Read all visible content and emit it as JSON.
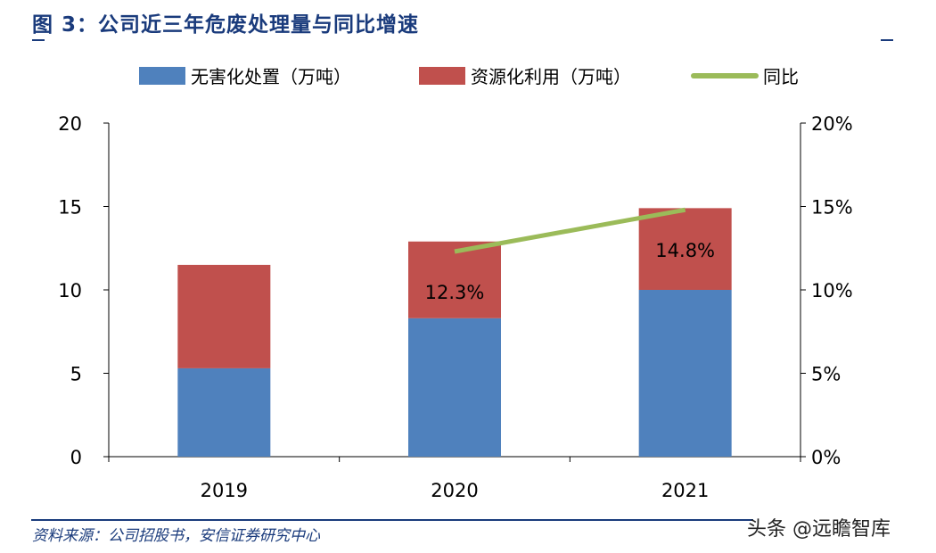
{
  "title": "图 3：公司近三年危废处理量与同比增速",
  "source": "资料来源：公司招股书，安信证券研究中心",
  "watermark": "头条 @远瞻智库",
  "chart_data": {
    "type": "bar",
    "stacked": true,
    "categories": [
      "2019",
      "2020",
      "2021"
    ],
    "series": [
      {
        "name": "无害化处置（万吨）",
        "type": "bar",
        "axis": "left",
        "color": "#4f81bd",
        "values": [
          5.3,
          8.3,
          10.0
        ]
      },
      {
        "name": "资源化利用（万吨）",
        "type": "bar",
        "axis": "left",
        "color": "#c0504d",
        "values": [
          6.2,
          4.6,
          4.9
        ]
      },
      {
        "name": "同比",
        "type": "line",
        "axis": "right",
        "color": "#9bbb59",
        "values": [
          null,
          12.3,
          14.8
        ],
        "labels": [
          "",
          "12.3%",
          "14.8%"
        ]
      }
    ],
    "y_left": {
      "range": [
        0,
        20
      ],
      "ticks": [
        "0",
        "5",
        "10",
        "15",
        "20"
      ]
    },
    "y_right": {
      "range": [
        0,
        20
      ],
      "ticks": [
        "0%",
        "5%",
        "10%",
        "15%",
        "20%"
      ]
    },
    "legend": "top",
    "grid": false
  }
}
